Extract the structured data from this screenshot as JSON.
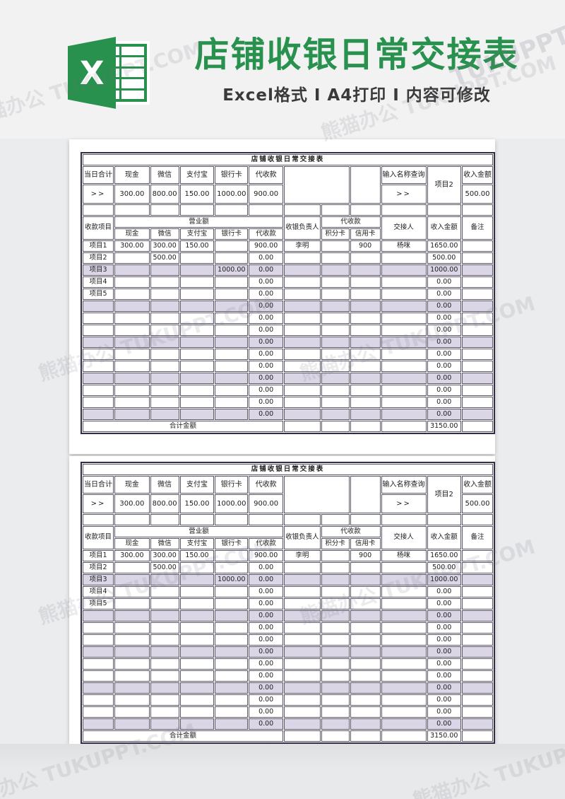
{
  "page": {
    "header": {
      "logo_letter": "X",
      "title": "店铺收银日常交接表",
      "subtitle": "Excel格式 Ⅰ A4打印 Ⅰ 内容可修改"
    },
    "watermark": {
      "text": "熊猫办公 TUKUPPT.COM",
      "short": "TUKUPPT.COM"
    },
    "colors": {
      "brand_green": "#28914d",
      "banner_purple": "#3e3456",
      "header_lavender": "#d9d3e4",
      "band_lavender": "#dbd6e6"
    }
  },
  "sheet": {
    "banner_title": "店铺收银日常交接表",
    "summary": {
      "row_label": "当日合计",
      "arrow": ">>",
      "columns": [
        "现金",
        "微信",
        "支付宝",
        "银行卡",
        "代收款"
      ],
      "values": [
        "300.00",
        "800.00",
        "150.00",
        "1000.00",
        "900.00"
      ],
      "query_label": "输入名称查询",
      "query_arrow": ">>",
      "query_project": "项目2",
      "income_label": "收入金额",
      "income_value": "500.00"
    },
    "detail": {
      "headers": {
        "item": "收款项目",
        "revenue_group": "营业额",
        "revenue_cols": [
          "现金",
          "微信",
          "支付宝",
          "银行卡",
          "代收款"
        ],
        "cashier": "收银负责人",
        "collection_group": "代收款",
        "collection_cols": [
          "积分卡",
          "信用卡"
        ],
        "handover": "交接人",
        "income": "收入金额",
        "note": "备注"
      },
      "rows": [
        [
          "项目1",
          "300.00",
          "300.00",
          "150.00",
          "",
          "900.00",
          "李明",
          "",
          "900",
          "杨咪",
          "1650.00",
          ""
        ],
        [
          "项目2",
          "",
          "500.00",
          "",
          "",
          "0.00",
          "",
          "",
          "",
          "",
          "500.00",
          ""
        ],
        [
          "项目3",
          "",
          "",
          "",
          "1000.00",
          "0.00",
          "",
          "",
          "",
          "",
          "1000.00",
          ""
        ],
        [
          "项目4",
          "",
          "",
          "",
          "",
          "0.00",
          "",
          "",
          "",
          "",
          "0.00",
          ""
        ],
        [
          "项目5",
          "",
          "",
          "",
          "",
          "0.00",
          "",
          "",
          "",
          "",
          "0.00",
          ""
        ],
        [
          "",
          "",
          "",
          "",
          "",
          "0.00",
          "",
          "",
          "",
          "",
          "0.00",
          ""
        ],
        [
          "",
          "",
          "",
          "",
          "",
          "0.00",
          "",
          "",
          "",
          "",
          "0.00",
          ""
        ],
        [
          "",
          "",
          "",
          "",
          "",
          "0.00",
          "",
          "",
          "",
          "",
          "0.00",
          ""
        ],
        [
          "",
          "",
          "",
          "",
          "",
          "0.00",
          "",
          "",
          "",
          "",
          "0.00",
          ""
        ],
        [
          "",
          "",
          "",
          "",
          "",
          "0.00",
          "",
          "",
          "",
          "",
          "0.00",
          ""
        ],
        [
          "",
          "",
          "",
          "",
          "",
          "0.00",
          "",
          "",
          "",
          "",
          "0.00",
          ""
        ],
        [
          "",
          "",
          "",
          "",
          "",
          "0.00",
          "",
          "",
          "",
          "",
          "0.00",
          ""
        ],
        [
          "",
          "",
          "",
          "",
          "",
          "0.00",
          "",
          "",
          "",
          "",
          "0.00",
          ""
        ],
        [
          "",
          "",
          "",
          "",
          "",
          "0.00",
          "",
          "",
          "",
          "",
          "0.00",
          ""
        ],
        [
          "",
          "",
          "",
          "",
          "",
          "0.00",
          "",
          "",
          "",
          "",
          "0.00",
          ""
        ]
      ],
      "total": {
        "label": "合计金额",
        "value": "3150.00"
      }
    }
  }
}
